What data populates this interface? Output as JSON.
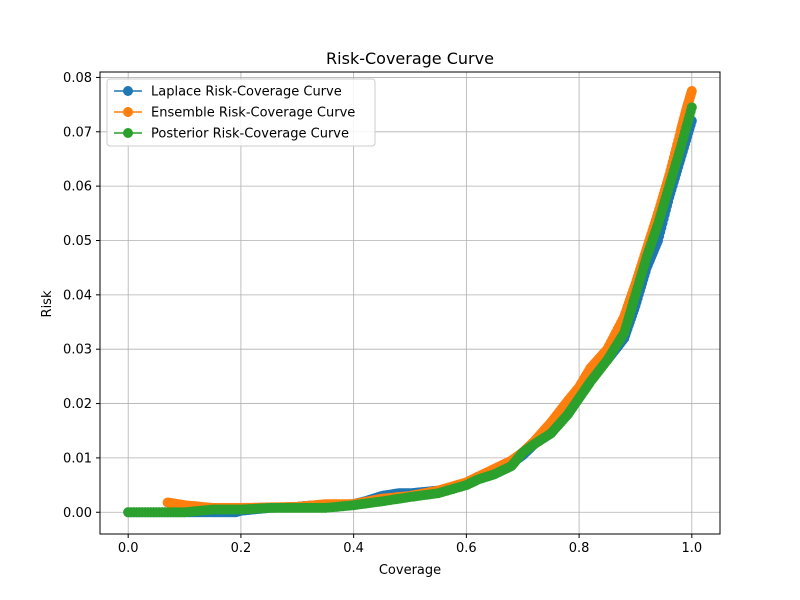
{
  "chart_data": {
    "type": "line",
    "title": "Risk-Coverage Curve",
    "xlabel": "Coverage",
    "ylabel": "Risk",
    "xlim": [
      -0.05,
      1.05
    ],
    "ylim": [
      -0.004,
      0.081
    ],
    "xticks": [
      0.0,
      0.2,
      0.4,
      0.6,
      0.8,
      1.0
    ],
    "xtick_labels": [
      "0.0",
      "0.2",
      "0.4",
      "0.6",
      "0.8",
      "1.0"
    ],
    "yticks": [
      0.0,
      0.01,
      0.02,
      0.03,
      0.04,
      0.05,
      0.06,
      0.07,
      0.08
    ],
    "ytick_labels": [
      "0.00",
      "0.01",
      "0.02",
      "0.03",
      "0.04",
      "0.05",
      "0.06",
      "0.07",
      "0.08"
    ],
    "grid": true,
    "legend": "top-left",
    "series": [
      {
        "name": "Laplace Risk-Coverage Curve",
        "color": "#1f77b4",
        "x": [
          0.0,
          0.05,
          0.1,
          0.15,
          0.19,
          0.2,
          0.22,
          0.25,
          0.3,
          0.32,
          0.35,
          0.4,
          0.42,
          0.45,
          0.48,
          0.5,
          0.55,
          0.6,
          0.62,
          0.65,
          0.68,
          0.7,
          0.72,
          0.75,
          0.78,
          0.8,
          0.82,
          0.85,
          0.88,
          0.9,
          0.92,
          0.94,
          0.96,
          0.98,
          1.0
        ],
        "y": [
          0.0,
          0.0,
          0.0,
          0.0,
          0.0,
          0.0003,
          0.0005,
          0.0008,
          0.001,
          0.0012,
          0.0013,
          0.0015,
          0.002,
          0.003,
          0.0035,
          0.0035,
          0.004,
          0.005,
          0.0065,
          0.0075,
          0.009,
          0.0105,
          0.0125,
          0.015,
          0.019,
          0.022,
          0.025,
          0.028,
          0.032,
          0.038,
          0.045,
          0.05,
          0.058,
          0.065,
          0.072
        ]
      },
      {
        "name": "Ensemble Risk-Coverage Curve",
        "color": "#ff7f0e",
        "x": [
          0.07,
          0.1,
          0.15,
          0.2,
          0.25,
          0.3,
          0.35,
          0.4,
          0.45,
          0.5,
          0.55,
          0.6,
          0.62,
          0.65,
          0.68,
          0.7,
          0.72,
          0.75,
          0.78,
          0.8,
          0.82,
          0.85,
          0.88,
          0.9,
          0.92,
          0.94,
          0.96,
          0.98,
          0.99,
          1.0
        ],
        "y": [
          0.0018,
          0.0013,
          0.0008,
          0.0008,
          0.0009,
          0.001,
          0.0015,
          0.0015,
          0.0025,
          0.003,
          0.004,
          0.0055,
          0.0065,
          0.008,
          0.0095,
          0.011,
          0.013,
          0.0165,
          0.0205,
          0.023,
          0.0265,
          0.03,
          0.036,
          0.042,
          0.0485,
          0.055,
          0.062,
          0.07,
          0.074,
          0.0775
        ]
      },
      {
        "name": "Posterior Risk-Coverage Curve",
        "color": "#2ca02c",
        "x": [
          0.0,
          0.05,
          0.1,
          0.15,
          0.2,
          0.25,
          0.3,
          0.35,
          0.4,
          0.45,
          0.5,
          0.55,
          0.6,
          0.62,
          0.65,
          0.68,
          0.7,
          0.72,
          0.75,
          0.78,
          0.8,
          0.82,
          0.85,
          0.88,
          0.9,
          0.92,
          0.94,
          0.96,
          0.98,
          1.0
        ],
        "y": [
          0.0,
          0.0,
          0.0,
          0.0005,
          0.0005,
          0.0008,
          0.0008,
          0.0008,
          0.0013,
          0.002,
          0.0028,
          0.0035,
          0.005,
          0.006,
          0.007,
          0.0085,
          0.011,
          0.0125,
          0.0145,
          0.018,
          0.021,
          0.024,
          0.028,
          0.033,
          0.04,
          0.047,
          0.053,
          0.06,
          0.067,
          0.0745
        ]
      }
    ]
  }
}
